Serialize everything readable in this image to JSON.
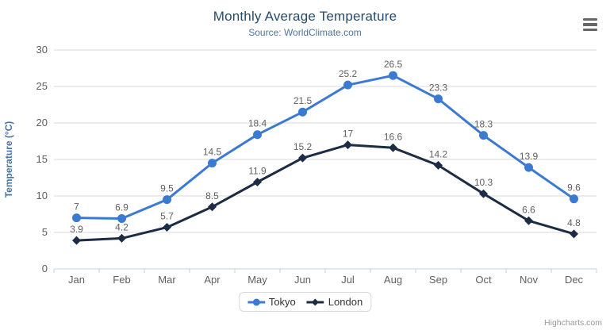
{
  "chart_data": {
    "type": "line",
    "title": "Monthly Average Temperature",
    "subtitle": "Source: WorldClimate.com",
    "categories": [
      "Jan",
      "Feb",
      "Mar",
      "Apr",
      "May",
      "Jun",
      "Jul",
      "Aug",
      "Sep",
      "Oct",
      "Nov",
      "Dec"
    ],
    "series": [
      {
        "name": "Tokyo",
        "color": "#3b7ad3",
        "marker": "circle",
        "values": [
          7,
          6.9,
          9.5,
          14.5,
          18.4,
          21.5,
          25.2,
          26.5,
          23.3,
          18.3,
          13.9,
          9.6
        ]
      },
      {
        "name": "London",
        "color": "#1c2c44",
        "marker": "diamond",
        "values": [
          3.9,
          4.2,
          5.7,
          8.5,
          11.9,
          15.2,
          17,
          16.6,
          14.2,
          10.3,
          6.6,
          4.8
        ]
      }
    ],
    "xlabel": "",
    "ylabel": "Temperature (°C)",
    "ylim": [
      0,
      30
    ],
    "yticks": [
      0,
      5,
      10,
      15,
      20,
      25,
      30
    ],
    "grid": true,
    "legend_position": "bottom",
    "data_labels": true
  },
  "credits": {
    "label": "Highcharts.com"
  },
  "export_menu": {
    "icon": "hamburger-icon"
  },
  "colors": {
    "title": "#274b6d",
    "subtitle": "#4d759e",
    "axis_title": "#4572a7",
    "tick_label": "#606060",
    "data_label": "#606060",
    "gridline": "#d8d8d8",
    "x_axis_line": "#c0d0e0",
    "legend_border": "#d8d8d8",
    "legend_text": "#333333",
    "credits": "#999999",
    "export_icon": "#666666",
    "background": "#ffffff"
  }
}
